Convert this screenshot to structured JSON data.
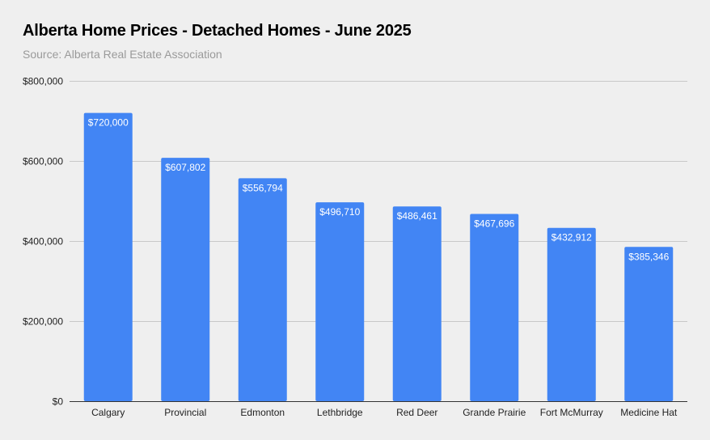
{
  "chart_data": {
    "type": "bar",
    "title": "Alberta Home Prices - Detached Homes - June 2025",
    "subtitle": "Source: Alberta Real Estate Association",
    "categories": [
      "Calgary",
      "Provincial",
      "Edmonton",
      "Lethbridge",
      "Red Deer",
      "Grande Prairie",
      "Fort McMurray",
      "Medicine Hat"
    ],
    "values": [
      720000,
      607802,
      556794,
      496710,
      486461,
      467696,
      432912,
      385346
    ],
    "data_labels": [
      "$720,000",
      "$607,802",
      "$556,794",
      "$496,710",
      "$486,461",
      "$467,696",
      "$432,912",
      "$385,346"
    ],
    "y_ticks": [
      0,
      200000,
      400000,
      600000,
      800000
    ],
    "y_tick_labels": [
      "$0",
      "$200,000",
      "$400,000",
      "$600,000",
      "$800,000"
    ],
    "ylim": [
      0,
      800000
    ],
    "xlabel": "",
    "ylabel": "",
    "grid": true,
    "legend": "none",
    "colors": {
      "bar": "#4285f4",
      "grid": "#c8c8c8",
      "axis": "#333333",
      "background": "#efefef"
    }
  }
}
